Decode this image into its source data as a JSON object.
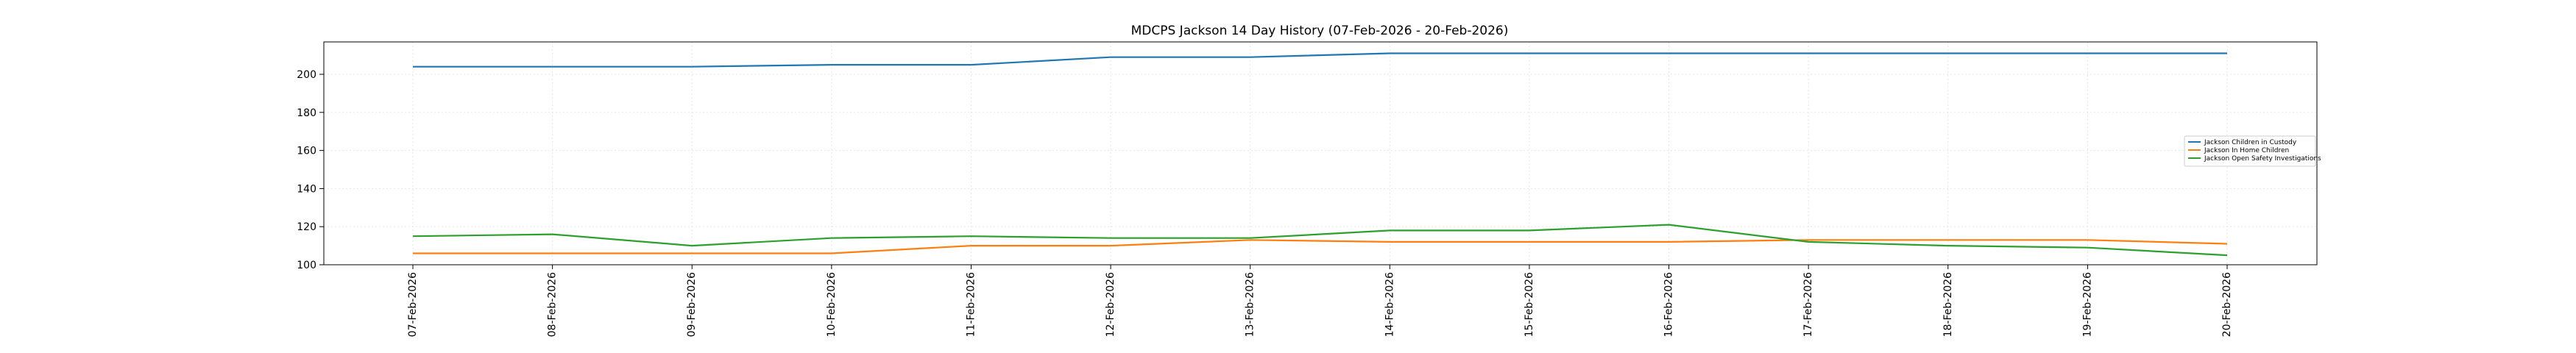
{
  "chart_data": {
    "type": "line",
    "title": "MDCPS Jackson 14 Day History (07-Feb-2026 - 20-Feb-2026)",
    "xlabel": "",
    "ylabel": "",
    "categories": [
      "07-Feb-2026",
      "08-Feb-2026",
      "09-Feb-2026",
      "10-Feb-2026",
      "11-Feb-2026",
      "12-Feb-2026",
      "13-Feb-2026",
      "14-Feb-2026",
      "15-Feb-2026",
      "16-Feb-2026",
      "17-Feb-2026",
      "18-Feb-2026",
      "19-Feb-2026",
      "20-Feb-2026"
    ],
    "ylim": [
      100,
      217
    ],
    "yticks": [
      100,
      120,
      140,
      160,
      180,
      200
    ],
    "grid": true,
    "legend_position": "right",
    "series": [
      {
        "name": "Jackson Children in Custody",
        "color": "#1f77b4",
        "values": [
          204,
          204,
          204,
          205,
          205,
          209,
          209,
          211,
          211,
          211,
          211,
          211,
          211,
          211
        ]
      },
      {
        "name": "Jackson In Home Children",
        "color": "#ff7f0e",
        "values": [
          106,
          106,
          106,
          106,
          110,
          110,
          113,
          112,
          112,
          112,
          113,
          113,
          113,
          111
        ]
      },
      {
        "name": "Jackson Open Safety Investigations",
        "color": "#2ca02c",
        "values": [
          115,
          116,
          110,
          114,
          115,
          114,
          114,
          118,
          118,
          121,
          112,
          110,
          109,
          105
        ]
      }
    ]
  }
}
